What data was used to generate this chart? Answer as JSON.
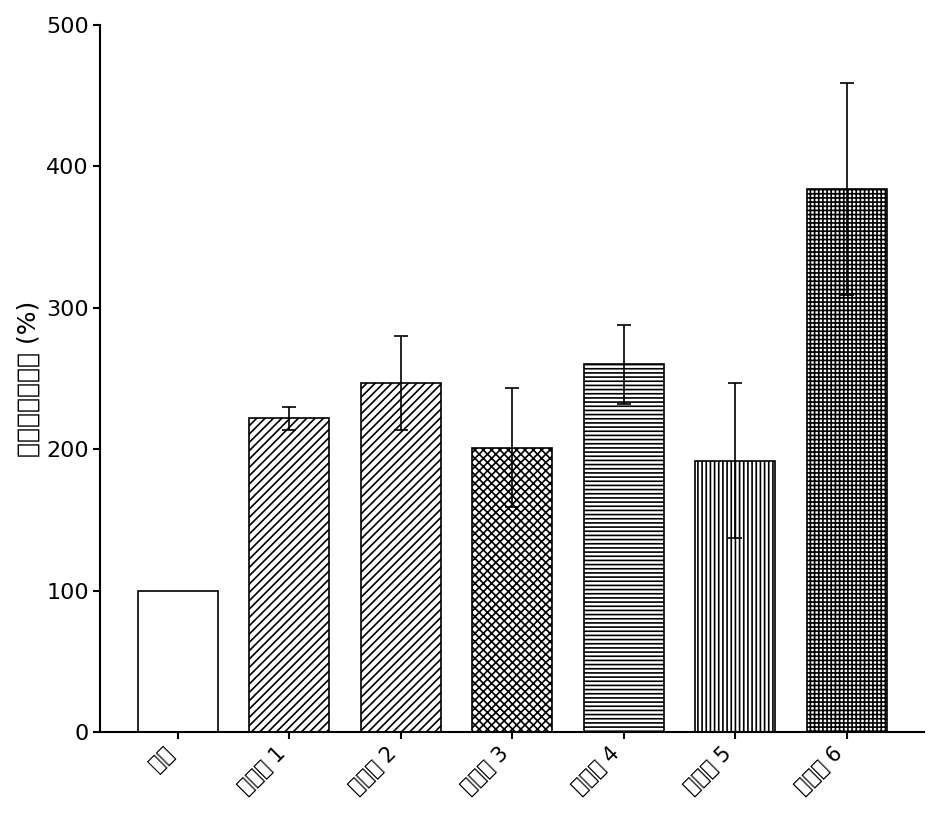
{
  "categories": [
    "軟膏",
    "实施例 1",
    "实施例 2",
    "实施例 3",
    "实施例 4",
    "实施例 5",
    "实施例 6"
  ],
  "values": [
    100,
    222,
    247,
    201,
    260,
    192,
    384
  ],
  "errors": [
    0,
    8,
    33,
    42,
    28,
    55,
    75
  ],
  "hatch_patterns": [
    "",
    "////",
    "////",
    "xxxx",
    "----",
    "||||",
    "++++"
  ],
  "bar_color": "#ffffff",
  "bar_edgecolor": "#000000",
  "ylabel": "累积渗透百分率 (%)",
  "ylim": [
    0,
    500
  ],
  "yticks": [
    0,
    100,
    200,
    300,
    400,
    500
  ],
  "ylabel_fontsize": 18,
  "tick_fontsize": 16,
  "xlabel_fontsize": 15,
  "bar_width": 0.72,
  "hatch_linewidth": 1.2,
  "background_color": "#ffffff",
  "figsize": [
    9.41,
    8.15
  ],
  "dpi": 100,
  "capsize": 5,
  "elinewidth": 1.2,
  "capthick": 1.2
}
